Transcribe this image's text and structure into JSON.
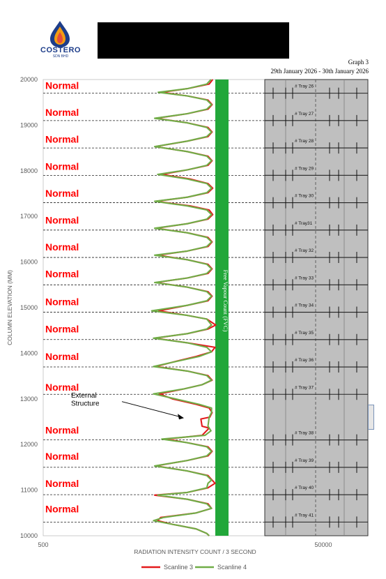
{
  "header": {
    "logo_text": "COSTERO",
    "logo_sub": "SDN BHD",
    "graph_label": "Graph 3",
    "date_range": "29th January 2026 - 30th January 2026"
  },
  "chart_data": {
    "type": "line",
    "title": "",
    "xlabel": "RADIATION INTENSITY COUNT / 3 SECOND",
    "ylabel": "COLUMN ELEVATION (MM)",
    "ylim": [
      10000,
      20000
    ],
    "y_ticks": [
      "10000",
      "11000",
      "12000",
      "13000",
      "14000",
      "15000",
      "16000",
      "17000",
      "18000",
      "19000",
      "20000"
    ],
    "x_ticks": [
      "500",
      "50000"
    ],
    "fvc_label": "Free Vapour Count (FVC)",
    "status_label": "Normal",
    "status_elevations": [
      19870,
      19280,
      18690,
      18100,
      17510,
      16920,
      16330,
      15740,
      15130,
      14530,
      13930,
      13260,
      12320,
      11740,
      11150,
      10590
    ],
    "annotation": "External\nStructure",
    "trays": [
      {
        "name": "# Tray 26",
        "elevation": 19700
      },
      {
        "name": "# Tray 27",
        "elevation": 19100
      },
      {
        "name": "# Tray 28",
        "elevation": 18500
      },
      {
        "name": "# Tray 29",
        "elevation": 17900
      },
      {
        "name": "# Tray 30",
        "elevation": 17300
      },
      {
        "name": "# Tray31",
        "elevation": 16700
      },
      {
        "name": "# Tray 32",
        "elevation": 16100
      },
      {
        "name": "# Tray 33",
        "elevation": 15500
      },
      {
        "name": "# Tray 34",
        "elevation": 14900
      },
      {
        "name": "# Tray 35",
        "elevation": 14300
      },
      {
        "name": "# Tray 36",
        "elevation": 13700
      },
      {
        "name": "# Tray 37",
        "elevation": 13100
      },
      {
        "name": "# Tray 38",
        "elevation": 12100
      },
      {
        "name": "# Tray 39",
        "elevation": 11500
      },
      {
        "name": "# Tray 40",
        "elevation": 10900
      },
      {
        "name": "# Tray 41",
        "elevation": 10300
      }
    ],
    "series": [
      {
        "name": "Scanline 3",
        "color": "#e31a1c",
        "points": [
          [
            20000,
            0.98
          ],
          [
            19900,
            0.92
          ],
          [
            19800,
            0.55
          ],
          [
            19720,
            0.12
          ],
          [
            19640,
            0.55
          ],
          [
            19550,
            0.9
          ],
          [
            19450,
            0.97
          ],
          [
            19350,
            0.9
          ],
          [
            19250,
            0.55
          ],
          [
            19150,
            0.02
          ],
          [
            19050,
            0.55
          ],
          [
            18950,
            0.9
          ],
          [
            18850,
            0.97
          ],
          [
            18750,
            0.9
          ],
          [
            18650,
            0.55
          ],
          [
            18530,
            0.01
          ],
          [
            18420,
            0.55
          ],
          [
            18320,
            0.9
          ],
          [
            18220,
            0.97
          ],
          [
            18120,
            0.9
          ],
          [
            18020,
            0.55
          ],
          [
            17920,
            0.12
          ],
          [
            17820,
            0.6
          ],
          [
            17720,
            0.9
          ],
          [
            17620,
            0.98
          ],
          [
            17520,
            0.9
          ],
          [
            17420,
            0.55
          ],
          [
            17330,
            0.02
          ],
          [
            17230,
            0.6
          ],
          [
            17140,
            0.92
          ],
          [
            17040,
            0.98
          ],
          [
            16940,
            0.9
          ],
          [
            16840,
            0.55
          ],
          [
            16740,
            0.02
          ],
          [
            16640,
            0.55
          ],
          [
            16540,
            0.9
          ],
          [
            16440,
            0.97
          ],
          [
            16340,
            0.9
          ],
          [
            16240,
            0.55
          ],
          [
            16150,
            0.05
          ],
          [
            16050,
            0.55
          ],
          [
            15950,
            0.9
          ],
          [
            15850,
            0.97
          ],
          [
            15750,
            0.9
          ],
          [
            15650,
            0.55
          ],
          [
            15550,
            0.02
          ],
          [
            15450,
            0.55
          ],
          [
            15350,
            0.9
          ],
          [
            15250,
            0.97
          ],
          [
            15150,
            0.9
          ],
          [
            15050,
            0.55
          ],
          [
            14930,
            0.07
          ],
          [
            14830,
            0.55
          ],
          [
            14750,
            0.88
          ],
          [
            14620,
            1.03
          ],
          [
            14530,
            0.9
          ],
          [
            14430,
            0.55
          ],
          [
            14330,
            0.0
          ],
          [
            14230,
            0.55
          ],
          [
            14130,
            1.02
          ],
          [
            14030,
            0.96
          ],
          [
            13930,
            0.7
          ],
          [
            13830,
            0.38
          ],
          [
            13710,
            0.02
          ],
          [
            13610,
            0.55
          ],
          [
            13510,
            0.9
          ],
          [
            13410,
            0.97
          ],
          [
            13310,
            0.8
          ],
          [
            13220,
            0.5
          ],
          [
            13110,
            0.08
          ],
          [
            13000,
            0.3
          ],
          [
            12880,
            0.7
          ],
          [
            12800,
            0.92
          ],
          [
            12700,
            0.97
          ],
          [
            12600,
            0.93
          ],
          [
            12560,
            0.78
          ],
          [
            12400,
            0.8
          ],
          [
            12360,
            0.92
          ],
          [
            12200,
            0.8
          ],
          [
            12120,
            0.2
          ],
          [
            12040,
            0.55
          ],
          [
            11950,
            0.9
          ],
          [
            11850,
            0.97
          ],
          [
            11750,
            0.9
          ],
          [
            11650,
            0.55
          ],
          [
            11530,
            0.02
          ],
          [
            11420,
            0.55
          ],
          [
            11320,
            0.9
          ],
          [
            11220,
            0.97
          ],
          [
            11150,
            1.02
          ],
          [
            11050,
            0.9
          ],
          [
            10950,
            0.55
          ],
          [
            10890,
            0.0
          ],
          [
            10800,
            0.55
          ],
          [
            10700,
            0.9
          ],
          [
            10600,
            0.96
          ],
          [
            10500,
            0.7
          ],
          [
            10400,
            0.1
          ],
          [
            10330,
            0.05
          ],
          [
            10250,
            0.3
          ],
          [
            10150,
            0.7
          ],
          [
            10050,
            0.88
          ],
          [
            10000,
            0.92
          ]
        ]
      },
      {
        "name": "Scanline 4",
        "color": "#70ad47",
        "points": [
          [
            20000,
            0.95
          ],
          [
            19900,
            0.88
          ],
          [
            19800,
            0.55
          ],
          [
            19720,
            0.06
          ],
          [
            19640,
            0.55
          ],
          [
            19550,
            0.88
          ],
          [
            19450,
            0.96
          ],
          [
            19350,
            0.88
          ],
          [
            19250,
            0.55
          ],
          [
            19150,
            0.0
          ],
          [
            19050,
            0.55
          ],
          [
            18950,
            0.88
          ],
          [
            18850,
            0.96
          ],
          [
            18750,
            0.88
          ],
          [
            18650,
            0.55
          ],
          [
            18530,
            0.0
          ],
          [
            18420,
            0.55
          ],
          [
            18320,
            0.88
          ],
          [
            18220,
            0.96
          ],
          [
            18120,
            0.88
          ],
          [
            18020,
            0.55
          ],
          [
            17920,
            0.05
          ],
          [
            17820,
            0.55
          ],
          [
            17720,
            0.88
          ],
          [
            17620,
            0.96
          ],
          [
            17520,
            0.88
          ],
          [
            17420,
            0.55
          ],
          [
            17330,
            0.0
          ],
          [
            17230,
            0.55
          ],
          [
            17140,
            0.88
          ],
          [
            17040,
            0.96
          ],
          [
            16940,
            0.88
          ],
          [
            16840,
            0.55
          ],
          [
            16740,
            0.0
          ],
          [
            16640,
            0.55
          ],
          [
            16540,
            0.88
          ],
          [
            16440,
            0.96
          ],
          [
            16340,
            0.88
          ],
          [
            16240,
            0.55
          ],
          [
            16150,
            0.0
          ],
          [
            16050,
            0.55
          ],
          [
            15950,
            0.88
          ],
          [
            15850,
            0.96
          ],
          [
            15750,
            0.88
          ],
          [
            15650,
            0.55
          ],
          [
            15550,
            0.0
          ],
          [
            15450,
            0.55
          ],
          [
            15350,
            0.88
          ],
          [
            15250,
            0.96
          ],
          [
            15150,
            0.88
          ],
          [
            15050,
            0.55
          ],
          [
            14930,
            -0.05
          ],
          [
            14830,
            0.55
          ],
          [
            14750,
            0.88
          ],
          [
            14620,
            0.96
          ],
          [
            14530,
            0.88
          ],
          [
            14430,
            0.55
          ],
          [
            14330,
            -0.02
          ],
          [
            14230,
            0.55
          ],
          [
            14130,
            0.88
          ],
          [
            14030,
            0.96
          ],
          [
            13930,
            0.75
          ],
          [
            13830,
            0.4
          ],
          [
            13710,
            -0.02
          ],
          [
            13610,
            0.55
          ],
          [
            13510,
            0.88
          ],
          [
            13410,
            0.96
          ],
          [
            13310,
            0.8
          ],
          [
            13220,
            0.5
          ],
          [
            13110,
            -0.02
          ],
          [
            13000,
            0.35
          ],
          [
            12880,
            0.75
          ],
          [
            12800,
            0.96
          ],
          [
            12700,
            0.96
          ],
          [
            12600,
            0.92
          ],
          [
            12400,
            0.9
          ],
          [
            12300,
            0.95
          ],
          [
            12200,
            0.85
          ],
          [
            12120,
            0.12
          ],
          [
            12040,
            0.55
          ],
          [
            11950,
            0.88
          ],
          [
            11850,
            0.96
          ],
          [
            11750,
            0.88
          ],
          [
            11650,
            0.55
          ],
          [
            11530,
            0.0
          ],
          [
            11420,
            0.55
          ],
          [
            11320,
            0.88
          ],
          [
            11220,
            0.96
          ],
          [
            11150,
            0.9
          ],
          [
            11050,
            0.88
          ],
          [
            10950,
            0.55
          ],
          [
            10890,
            0.05
          ],
          [
            10800,
            0.55
          ],
          [
            10700,
            0.88
          ],
          [
            10600,
            0.96
          ],
          [
            10500,
            0.7
          ],
          [
            10400,
            0.15
          ],
          [
            10330,
            -0.02
          ],
          [
            10250,
            0.3
          ],
          [
            10150,
            0.7
          ],
          [
            10050,
            0.88
          ],
          [
            10000,
            0.92
          ]
        ]
      }
    ]
  }
}
